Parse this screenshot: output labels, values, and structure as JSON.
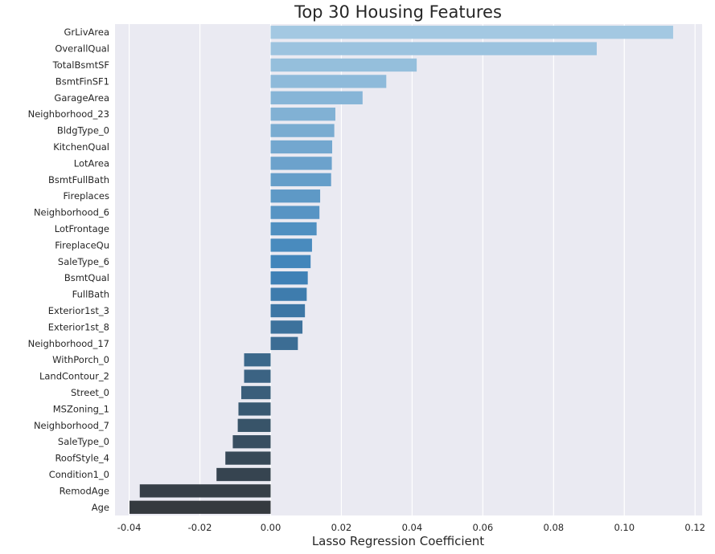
{
  "chart_data": {
    "type": "bar",
    "orientation": "horizontal",
    "title": "Top 30 Housing Features",
    "xlabel": "Lasso Regression Coefficient",
    "ylabel": "",
    "xlim": [
      -0.044,
      0.122
    ],
    "xticks": [
      -0.04,
      -0.02,
      0.0,
      0.02,
      0.04,
      0.06,
      0.08,
      0.1,
      0.12
    ],
    "xtick_labels": [
      "-0.04",
      "-0.02",
      "0.00",
      "0.02",
      "0.04",
      "0.06",
      "0.08",
      "0.10",
      "0.12"
    ],
    "grid": true,
    "background": "#eaeaf2",
    "palette": "Blues_d (light blue to dark slate)",
    "colors": {
      "start": "#a3c8e2",
      "mid": "#3f84ba",
      "end": "#353a3f"
    },
    "categories": [
      "GrLivArea",
      "OverallQual",
      "TotalBsmtSF",
      "BsmtFinSF1",
      "GarageArea",
      "Neighborhood_23",
      "BldgType_0",
      "KitchenQual",
      "LotArea",
      "BsmtFullBath",
      "Fireplaces",
      "Neighborhood_6",
      "LotFrontage",
      "FireplaceQu",
      "SaleType_6",
      "BsmtQual",
      "FullBath",
      "Exterior1st_3",
      "Exterior1st_8",
      "Neighborhood_17",
      "WithPorch_0",
      "LandContour_2",
      "Street_0",
      "MSZoning_1",
      "Neighborhood_7",
      "SaleType_0",
      "RoofStyle_4",
      "Condition1_0",
      "RemodAge",
      "Age"
    ],
    "values": [
      0.1138,
      0.0922,
      0.0413,
      0.0327,
      0.026,
      0.0183,
      0.018,
      0.0174,
      0.0173,
      0.0171,
      0.014,
      0.0138,
      0.013,
      0.0117,
      0.0113,
      0.0105,
      0.0102,
      0.0097,
      0.009,
      0.0077,
      -0.0075,
      -0.0075,
      -0.0083,
      -0.0091,
      -0.0093,
      -0.0107,
      -0.0128,
      -0.0153,
      -0.037,
      -0.0399
    ]
  }
}
